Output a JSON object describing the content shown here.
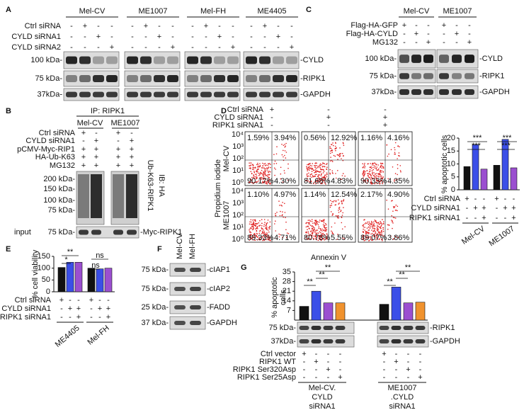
{
  "panel_labels": [
    "A",
    "B",
    "C",
    "D",
    "E",
    "F",
    "G"
  ],
  "blots": {
    "a": {
      "groups": [
        "Mel-CV",
        "ME1007",
        "Mel-FH",
        "ME4405"
      ],
      "rows": [
        "Ctrl siRNA",
        "CYLD siRNA1",
        "CYLD siRNA2"
      ],
      "signs": [
        [
          "-",
          "+",
          "-",
          "-",
          "-",
          "+",
          "-",
          "-",
          "-",
          "+",
          "-",
          "-",
          "-",
          "+",
          "-",
          "-"
        ],
        [
          "-",
          "-",
          "+",
          "-",
          "-",
          "-",
          "+",
          "-",
          "-",
          "-",
          "+",
          "-",
          "-",
          "-",
          "+",
          "-"
        ],
        [
          "-",
          "-",
          "-",
          "+",
          "-",
          "-",
          "-",
          "+",
          "-",
          "-",
          "-",
          "+",
          "-",
          "-",
          "-",
          "+"
        ]
      ],
      "markers": [
        "100 kDa-",
        "75 kDa-",
        "37kDa-"
      ],
      "bands": [
        "-CYLD",
        "-RIPK1",
        "-GAPDH"
      ]
    },
    "b": {
      "ip": "IP: RIPK1",
      "groups": [
        "Mel-CV",
        "ME1007"
      ],
      "rows": [
        "Ctrl siRNA",
        "CYLD siRNA1",
        "pCMV-Myc-RIP1",
        "HA-Ub-K63",
        "MG132"
      ],
      "signs": [
        [
          "+",
          "-",
          "+",
          "-"
        ],
        [
          "-",
          "+",
          "-",
          "+"
        ],
        [
          "+",
          "+",
          "+",
          "+"
        ],
        [
          "+",
          "+",
          "+",
          "+"
        ],
        [
          "+",
          "+",
          "+",
          "+"
        ]
      ],
      "markers": [
        "200 kDa-",
        "150 kDa-",
        "100 kDa-",
        "75 kDa-"
      ],
      "antibody": "IB: HA",
      "target": "Ub-K63-RIPK1",
      "input": "input",
      "input_marker": "75 kDa-",
      "input_band": "-Myc-RIPK1"
    },
    "c": {
      "groups": [
        "Mel-CV",
        "ME1007"
      ],
      "rows": [
        "Flag-HA-GFP",
        "Flag-HA-CYLD",
        "MG132"
      ],
      "signs": [
        [
          "+",
          "-",
          "-",
          "+",
          "-",
          "-"
        ],
        [
          "-",
          "+",
          "-",
          "-",
          "+",
          "-"
        ],
        [
          "-",
          "-",
          "+",
          "-",
          "-",
          "+"
        ]
      ],
      "markers": [
        "100 kDa-",
        "75 kDa-",
        "37kDa-"
      ],
      "bands": [
        "-CYLD",
        "-RIPK1",
        "-GAPDH"
      ]
    },
    "f": {
      "columns": [
        "Mel-CV",
        "Mel-FH"
      ],
      "markers": [
        "75 kDa-",
        "75 kDa-",
        "25 kDa-",
        "37 kDa-"
      ],
      "bands": [
        "-cIAP1",
        "-cIAP2",
        "-FADD",
        "-GAPDH"
      ]
    },
    "g": {
      "markers": [
        "75 kDa-",
        "37kDa-"
      ],
      "bands": [
        "-RIPK1",
        "-GAPDH"
      ]
    }
  },
  "flow": {
    "rows": [
      "Ctrl siRNA",
      "CYLD siRNA1",
      "RIPK1 siRNA1"
    ],
    "signs": [
      [
        "+",
        "-",
        "-"
      ],
      [
        "-",
        "+",
        "+"
      ],
      [
        "-",
        "-",
        "+"
      ]
    ],
    "ylabel": "Propidium iodide",
    "xlabel": "Annexin V",
    "lines": [
      "Mel-CV",
      "ME1007"
    ],
    "yticks": [
      "10⁴",
      "10³",
      "10²",
      "10¹",
      "10⁰"
    ],
    "quadrants": [
      [
        [
          "1.59%",
          "3.94%",
          "90.17%",
          "4.30%"
        ],
        [
          "0.56%",
          "12.92%",
          "81.68%",
          "4.83%"
        ],
        [
          "1.16%",
          "4.16%",
          "90.33%",
          "4.35%"
        ]
      ],
      [
        [
          "1.10%",
          "4.97%",
          "89.33%",
          "4.71%"
        ],
        [
          "1.14%",
          "12.54%",
          "80.78%",
          "5.55%"
        ],
        [
          "2.17%",
          "4.90%",
          "89.07%",
          "3.86%"
        ]
      ]
    ]
  },
  "chart_data": [
    {
      "type": "bar",
      "ylabel": "% apoptotic cells",
      "categories": [
        "Mel-CV",
        "ME1007"
      ],
      "ylim": [
        0,
        20
      ],
      "yticks": [
        0,
        5,
        10,
        15,
        20
      ],
      "series": [
        {
          "color": "#111111",
          "values": [
            9,
            9.5
          ]
        },
        {
          "color": "#3b4fe8",
          "values": [
            17.5,
            19.5
          ]
        },
        {
          "color": "#9b4fd0",
          "values": [
            8,
            8.5
          ]
        }
      ],
      "rows": [
        "Ctrl siRNA",
        "CYLD siRNA1",
        "RIPK1 siRNA1"
      ],
      "signs": [
        [
          "+",
          "-",
          "-",
          "+",
          "-",
          "-"
        ],
        [
          "-",
          "+",
          "+",
          "-",
          "+",
          "+"
        ],
        [
          "-",
          "-",
          "+",
          "-",
          "-",
          "+"
        ]
      ],
      "annotations": [
        "***",
        "***",
        "***",
        "***"
      ]
    },
    {
      "type": "bar",
      "ylabel": "% cell viability",
      "categories": [
        "ME4405",
        "Mel-FH"
      ],
      "ylim": [
        0,
        150
      ],
      "yticks": [
        0,
        50,
        100,
        150
      ],
      "series": [
        {
          "color": "#111111",
          "values": [
            103,
            100
          ]
        },
        {
          "color": "#3b4fe8",
          "values": [
            125,
            97
          ]
        },
        {
          "color": "#9b4fd0",
          "values": [
            125,
            100
          ]
        }
      ],
      "rows": [
        "Ctrl siRNA",
        "CYLD siRNA1",
        "RIPK1 siRNA1"
      ],
      "signs": [
        [
          "+",
          "-",
          "-",
          "+",
          "-",
          "-"
        ],
        [
          "-",
          "+",
          "+",
          "-",
          "+",
          "+"
        ],
        [
          "-",
          "-",
          "+",
          "-",
          "-",
          "+"
        ]
      ],
      "annotations": [
        "**",
        "*",
        "ns",
        "ns"
      ]
    },
    {
      "type": "bar",
      "ylabel": [
        "% apoptotic",
        "cells"
      ],
      "categories": [
        [
          "Mel-CV.",
          "CYLD",
          "siRNA1"
        ],
        [
          "ME1007",
          ".CYLD",
          "siRNA1"
        ]
      ],
      "ylim": [
        0,
        35
      ],
      "yticks": [
        7,
        14,
        21,
        28,
        35
      ],
      "series": [
        {
          "color": "#111111",
          "values": [
            10,
            11.5
          ]
        },
        {
          "color": "#3b4fe8",
          "values": [
            21,
            24
          ]
        },
        {
          "color": "#9b4fd0",
          "values": [
            12.5,
            12.5
          ]
        },
        {
          "color": "#f0922e",
          "values": [
            12.5,
            13
          ]
        }
      ],
      "rows": [
        "Ctrl vector",
        "RIPK1 WT",
        "RIPK1 Ser320Asp",
        "RIPK1 Ser25Asp"
      ],
      "signs": [
        [
          "+",
          "-",
          "-",
          "-",
          "+",
          "-",
          "-",
          "-"
        ],
        [
          "-",
          "+",
          "-",
          "-",
          "-",
          "+",
          "-",
          "-"
        ],
        [
          "-",
          "-",
          "+",
          "-",
          "-",
          "-",
          "+",
          "-"
        ],
        [
          "-",
          "-",
          "-",
          "+",
          "-",
          "-",
          "-",
          "+"
        ]
      ],
      "annotations": [
        "**",
        "**",
        "**",
        "**",
        "**",
        "**"
      ]
    }
  ]
}
